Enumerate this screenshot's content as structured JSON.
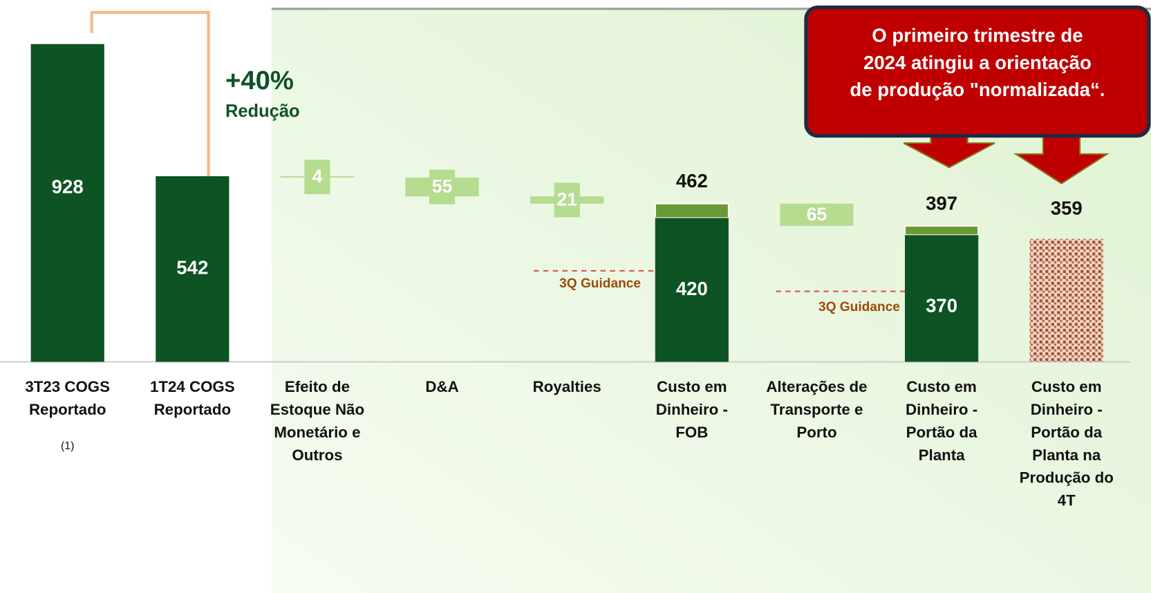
{
  "chart_data": {
    "type": "waterfall",
    "categories": [
      "3T23 COGS\nReportado",
      "1T24 COGS\nReportado",
      "Efeito de\nEstoque Não\nMonetário e\nOutros",
      "D&A",
      "Royalties",
      "Custo em\nDinheiro -\nFOB",
      "Alterações de\nTransporte e\nPorto",
      "Custo em\nDinheiro -\nPortão da\nPlanta",
      "Custo em\nDinheiro -\nPortão da\nPlanta na\nProdução do\n4T"
    ],
    "values": [
      928,
      542,
      4,
      55,
      21,
      462,
      65,
      397,
      359
    ],
    "kinds": [
      "total",
      "total",
      "decrease",
      "decrease",
      "decrease",
      "total",
      "decrease",
      "total",
      "projected"
    ],
    "inner_values": [
      null,
      null,
      null,
      null,
      null,
      420,
      null,
      370,
      null
    ],
    "colors": {
      "total": "#0d5323",
      "decrease": "#b5dc8f",
      "cap": "#6a9a34",
      "projected": "#a0522d"
    },
    "annotations": {
      "change": "+40%",
      "change_label": "Redução",
      "footnote": "(1)",
      "guidance": [
        "3Q Guidance",
        "3Q Guidance"
      ],
      "callout": "O primeiro trimestre de\n2024 atingiu a orientação\nde produção \"normalizada“."
    }
  }
}
